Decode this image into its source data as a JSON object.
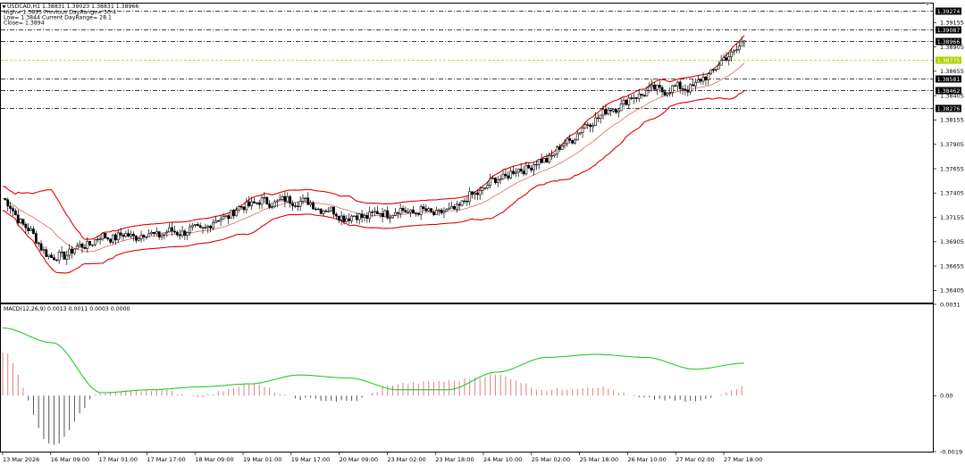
{
  "header": {
    "symbol_line": "USDCAD,H1  1.38831 1.39023 1.38831 1.38966",
    "high_line": "High= 1.3895 Previous DayRange= 50.4",
    "low_line": "Low= 1.3844 Current DayRange= 28.1",
    "close_line": "Close= 1.3894"
  },
  "macd": {
    "label": "MACD(12,26,9) 0.0013 0.0011 0.0003 0.0000",
    "axis_ticks": [
      "0.0031",
      "0.00",
      "-0.0019"
    ]
  },
  "price_axis": {
    "ticks": [
      "1.39155",
      "1.38905",
      "1.38655",
      "1.38405",
      "1.38155",
      "1.37905",
      "1.37655",
      "1.37405",
      "1.37155",
      "1.36905",
      "1.36655",
      "1.36405"
    ]
  },
  "level_tags": [
    {
      "label": "1.39274",
      "style": "dark"
    },
    {
      "label": "1.39087",
      "style": "dark"
    },
    {
      "label": "1.38966",
      "style": "dark"
    },
    {
      "label": "1.38775",
      "style": "green"
    },
    {
      "label": "1.38581",
      "style": "dark"
    },
    {
      "label": "1.38462",
      "style": "dark"
    },
    {
      "label": "1.38276",
      "style": "dark"
    }
  ],
  "time_axis": {
    "labels": [
      "13 Mar 2026",
      "16 Mar 09:00",
      "17 Mar 01:00",
      "17 Mar 17:00",
      "18 Mar 09:00",
      "19 Mar 01:00",
      "19 Mar 17:00",
      "20 Mar 09:00",
      "23 Mar 02:00",
      "23 Mar 18:00",
      "24 Mar 10:00",
      "25 Mar 02:00",
      "25 Mar 18:00",
      "26 Mar 10:00",
      "27 Mar 02:00",
      "27 Mar 18:00"
    ]
  },
  "colors": {
    "background": "#ffffff",
    "bands": "#e00000",
    "middle_band": "#e05050",
    "candle": "#000000",
    "macd_line": "#22cc22",
    "hist_pos": "#e08080",
    "hist_neg": "#555555",
    "level_line": "#000000",
    "level_green": "#b0d000"
  },
  "chart_data": [
    {
      "type": "candlestick",
      "title": "USDCAD,H1",
      "timeframe": "H1",
      "x_range": [
        "13 Mar 2026",
        "27 Mar 18:00"
      ],
      "ylim": [
        1.3628,
        1.3935
      ],
      "indicators": [
        "Bollinger Bands (upper, middle, lower)"
      ],
      "approx_path": {
        "x": [
          "13 Mar 2026",
          "16 Mar 09:00",
          "17 Mar 01:00",
          "17 Mar 17:00",
          "18 Mar 09:00",
          "19 Mar 01:00",
          "19 Mar 17:00",
          "20 Mar 09:00",
          "23 Mar 02:00",
          "23 Mar 18:00",
          "24 Mar 10:00",
          "25 Mar 02:00",
          "25 Mar 18:00",
          "26 Mar 10:00",
          "27 Mar 02:00",
          "27 Mar 18:00"
        ],
        "close": [
          1.3735,
          1.3672,
          1.3695,
          1.3698,
          1.3703,
          1.373,
          1.3733,
          1.3715,
          1.3722,
          1.372,
          1.3755,
          1.3775,
          1.3818,
          1.3845,
          1.385,
          1.3896
        ]
      },
      "price_levels": [
        1.39274,
        1.39087,
        1.38966,
        1.38775,
        1.38581,
        1.38462,
        1.38276
      ]
    },
    {
      "type": "line",
      "title": "MACD(12,26,9)",
      "series": [
        {
          "name": "MACD",
          "values": [
            0.0023,
            0.0018,
            0.0001,
            0.0002,
            0.0003,
            0.0004,
            0.0007,
            0.0006,
            0.0002,
            0.0002,
            0.0008,
            0.0013,
            0.0014,
            0.0013,
            0.0009,
            0.0011
          ]
        },
        {
          "name": "histogram",
          "values": [
            0.0015,
            -0.0017,
            0.0001,
            0.0002,
            0.0,
            0.0004,
            -0.0001,
            -0.0002,
            0.0004,
            0.0005,
            0.0007,
            0.0002,
            0.0003,
            -0.0001,
            -0.0002,
            0.0003
          ]
        }
      ],
      "ylim": [
        -0.0019,
        0.0031
      ]
    }
  ]
}
